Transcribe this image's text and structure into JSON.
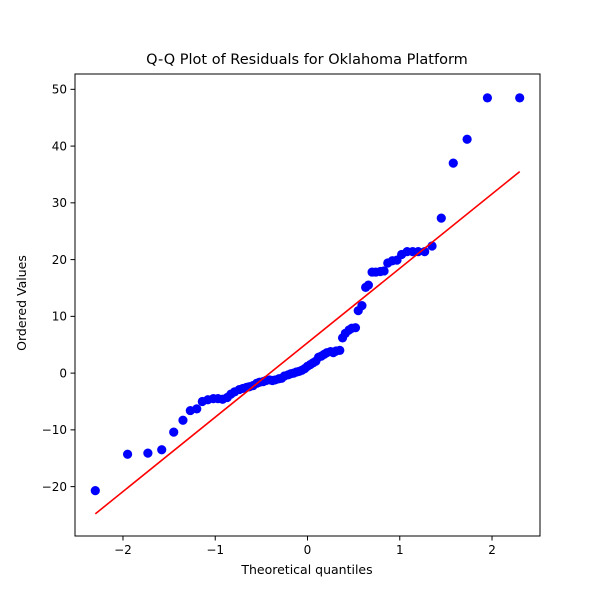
{
  "chart_data": {
    "type": "scatter",
    "title": "Q-Q Plot of Residuals for Oklahoma Platform",
    "xlabel": "Theoretical quantiles",
    "ylabel": "Ordered Values",
    "xlim": [
      -2.52,
      2.52
    ],
    "ylim": [
      -28.7,
      52.7
    ],
    "xticks": [
      -2,
      -1,
      0,
      1,
      2
    ],
    "xtick_labels": [
      "−2",
      "−1",
      "0",
      "1",
      "2"
    ],
    "yticks": [
      -20,
      -10,
      0,
      10,
      20,
      30,
      40,
      50
    ],
    "ytick_labels": [
      "−20",
      "−10",
      "0",
      "10",
      "20",
      "30",
      "40",
      "50"
    ],
    "grid": false,
    "series": [
      {
        "kind": "points",
        "color": "#0000ff",
        "x": [
          -2.3,
          -1.95,
          -1.73,
          -1.58,
          -1.45,
          -1.35,
          -1.27,
          -1.2,
          -1.14,
          -1.08,
          -1.02,
          -0.97,
          -0.92,
          -0.87,
          -0.83,
          -0.79,
          -0.74,
          -0.7,
          -0.66,
          -0.63,
          -0.59,
          -0.55,
          -0.52,
          -0.48,
          -0.45,
          -0.41,
          -0.38,
          -0.35,
          -0.31,
          -0.28,
          -0.25,
          -0.21,
          -0.18,
          -0.15,
          -0.12,
          -0.09,
          -0.06,
          -0.03,
          0.0,
          0.03,
          0.06,
          0.09,
          0.12,
          0.15,
          0.18,
          0.21,
          0.25,
          0.28,
          0.31,
          0.35,
          0.38,
          0.41,
          0.45,
          0.48,
          0.52,
          0.55,
          0.59,
          0.63,
          0.66,
          0.7,
          0.74,
          0.79,
          0.83,
          0.87,
          0.92,
          0.97,
          1.02,
          1.08,
          1.14,
          1.2,
          1.27,
          1.35,
          1.45,
          1.58,
          1.73,
          1.95,
          2.3
        ],
        "y": [
          -20.7,
          -14.3,
          -14.1,
          -13.5,
          -10.4,
          -8.3,
          -6.6,
          -6.3,
          -5.0,
          -4.7,
          -4.5,
          -4.5,
          -4.6,
          -4.3,
          -3.7,
          -3.3,
          -2.9,
          -2.7,
          -2.5,
          -2.4,
          -2.2,
          -1.8,
          -1.6,
          -1.5,
          -1.3,
          -1.2,
          -1.3,
          -1.2,
          -1.0,
          -0.9,
          -0.5,
          -0.3,
          -0.1,
          0.0,
          0.2,
          0.3,
          0.5,
          0.8,
          1.2,
          1.5,
          1.8,
          2.1,
          2.8,
          3.0,
          3.3,
          3.6,
          3.8,
          3.6,
          3.9,
          4.0,
          6.2,
          7.0,
          7.6,
          7.9,
          8.0,
          11.0,
          11.9,
          15.1,
          15.5,
          17.8,
          17.8,
          17.9,
          18.0,
          19.4,
          19.8,
          19.9,
          20.9,
          21.4,
          21.4,
          21.4,
          21.4,
          22.4,
          27.3,
          37.0,
          41.2,
          48.5,
          48.5
        ]
      },
      {
        "kind": "fit-line",
        "color": "#ff0000",
        "x": [
          -2.3,
          2.3
        ],
        "y": [
          -24.8,
          35.5
        ]
      }
    ]
  }
}
